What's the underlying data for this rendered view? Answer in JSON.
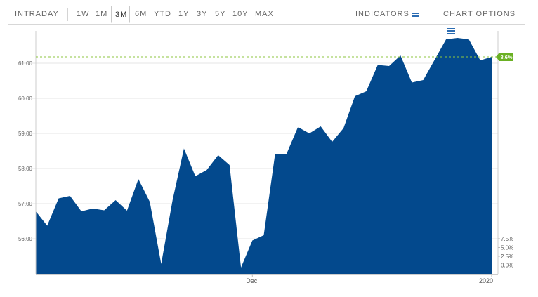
{
  "toolbar": {
    "intraday_label": "INTRADAY",
    "ranges": [
      "1W",
      "1M",
      "3M",
      "6M",
      "YTD",
      "1Y",
      "3Y",
      "5Y",
      "10Y",
      "MAX"
    ],
    "active_range": "3M",
    "indicators_label": "INDICATORS",
    "chart_options_label": "CHART OPTIONS",
    "menu_icon": "hamburger-icon"
  },
  "colors": {
    "area_fill": "#03498d",
    "reference_line": "#8cc63f",
    "badge": "#6ab023",
    "accent": "#2c6db3"
  },
  "chart_data": {
    "type": "area",
    "x": [
      0,
      1,
      2,
      3,
      4,
      5,
      6,
      7,
      8,
      9,
      10,
      11,
      12,
      13,
      14,
      15,
      16,
      17,
      18,
      19,
      20,
      21,
      22,
      23,
      24,
      25,
      26,
      27,
      28,
      29,
      30,
      31,
      32,
      33,
      34,
      35,
      36,
      37,
      38,
      39,
      40
    ],
    "values": [
      56.78,
      56.37,
      57.15,
      57.22,
      56.78,
      56.86,
      56.81,
      57.1,
      56.8,
      57.7,
      57.05,
      55.28,
      57.1,
      58.57,
      57.78,
      57.96,
      58.38,
      58.1,
      55.18,
      55.95,
      56.1,
      58.42,
      58.42,
      59.18,
      59.0,
      59.2,
      58.76,
      59.15,
      60.06,
      60.2,
      60.95,
      60.92,
      61.22,
      60.45,
      60.52,
      61.1,
      61.68,
      61.72,
      61.68,
      61.08,
      61.18
    ],
    "x_ticks": [
      {
        "x": 19,
        "label": "Dec"
      },
      {
        "x": 40,
        "label": "2020"
      }
    ],
    "y_ticks": [
      56.0,
      57.0,
      58.0,
      59.0,
      60.0,
      61.0
    ],
    "y_tick_labels": [
      "56.00",
      "57.00",
      "58.00",
      "59.00",
      "60.00",
      "61.00"
    ],
    "ylim": [
      55.0,
      61.9
    ],
    "right_axis": {
      "ticks": [
        0.0,
        2.5,
        5.0,
        7.5
      ],
      "labels": [
        "0.0%",
        "2.5%",
        "5.0%",
        "7.5%"
      ],
      "baseline": 55.25,
      "step_per_percent": 0.1
    },
    "reference_value": 61.18,
    "badge_label": "8.6%",
    "grid": "horizontal"
  }
}
